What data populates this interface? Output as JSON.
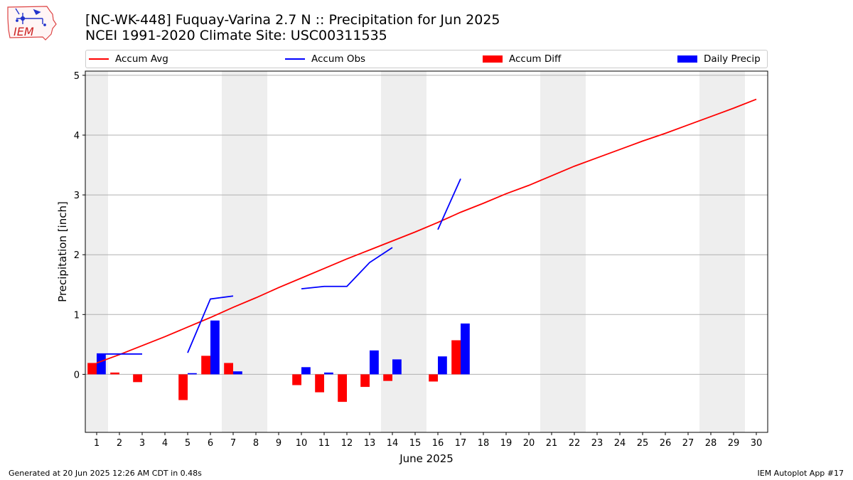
{
  "logo_text": "IEM",
  "title_line1": "[NC-WK-448] Fuquay-Varina 2.7 N :: Precipitation for Jun 2025",
  "title_line2": "NCEI 1991-2020 Climate Site: USC00311535",
  "footer_left": "Generated at 20 Jun 2025 12:26 AM CDT in 0.48s",
  "footer_right": "IEM Autoplot App #17",
  "colors": {
    "accum_avg": "#ff0000",
    "accum_obs": "#0000ff",
    "accum_diff": "#ff0000",
    "daily_precip": "#0000ff",
    "weekend_shade": "#eeeeee",
    "grid": "#b0b0b0"
  },
  "chart_data": {
    "type": "bar",
    "xlabel": "June 2025",
    "ylabel": "Precipitation [inch]",
    "xlim": [
      0.5,
      30.5
    ],
    "ylim": [
      -0.97,
      5.07
    ],
    "grid": true,
    "legend_position": "top",
    "x_ticks": [
      1,
      2,
      3,
      4,
      5,
      6,
      7,
      8,
      9,
      10,
      11,
      12,
      13,
      14,
      15,
      16,
      17,
      18,
      19,
      20,
      21,
      22,
      23,
      24,
      25,
      26,
      27,
      28,
      29,
      30
    ],
    "y_ticks": [
      0,
      1,
      2,
      3,
      4,
      5
    ],
    "weekend_days": [
      1,
      7,
      8,
      14,
      15,
      21,
      22,
      28,
      29
    ],
    "series": [
      {
        "name": "Accum Avg",
        "kind": "line",
        "x": [
          1,
          2,
          3,
          4,
          5,
          6,
          7,
          8,
          9,
          10,
          11,
          12,
          13,
          14,
          15,
          16,
          17,
          18,
          19,
          20,
          21,
          22,
          23,
          24,
          25,
          26,
          27,
          28,
          29,
          30
        ],
        "values": [
          0.19,
          0.33,
          0.48,
          0.63,
          0.79,
          0.95,
          1.12,
          1.28,
          1.45,
          1.61,
          1.77,
          1.93,
          2.08,
          2.23,
          2.38,
          2.54,
          2.71,
          2.86,
          3.02,
          3.16,
          3.32,
          3.48,
          3.62,
          3.76,
          3.9,
          4.03,
          4.17,
          4.31,
          4.45,
          4.6
        ]
      },
      {
        "name": "Accum Obs",
        "kind": "line",
        "segments": [
          {
            "x": [
              1,
              2,
              3
            ],
            "values": [
              0.34,
              0.34,
              0.34
            ]
          },
          {
            "x": [
              5,
              6,
              7
            ],
            "values": [
              0.36,
              1.26,
              1.31
            ]
          },
          {
            "x": [
              10,
              11,
              12,
              13,
              14
            ],
            "values": [
              1.43,
              1.47,
              1.47,
              1.87,
              2.12
            ]
          },
          {
            "x": [
              16,
              17
            ],
            "values": [
              2.42,
              3.27
            ]
          }
        ]
      },
      {
        "name": "Accum Diff",
        "kind": "bar",
        "x": [
          1,
          2,
          3,
          5,
          6,
          7,
          10,
          11,
          12,
          13,
          14,
          16,
          17
        ],
        "values": [
          0.19,
          0.03,
          -0.13,
          -0.43,
          0.31,
          0.19,
          -0.18,
          -0.3,
          -0.46,
          -0.21,
          -0.11,
          -0.12,
          0.57
        ]
      },
      {
        "name": "Daily Precip",
        "kind": "bar",
        "x": [
          1,
          5,
          6,
          7,
          10,
          11,
          13,
          14,
          16,
          17
        ],
        "values": [
          0.34,
          0.02,
          0.9,
          0.05,
          0.12,
          0.03,
          0.4,
          0.25,
          0.3,
          0.85
        ]
      }
    ]
  }
}
